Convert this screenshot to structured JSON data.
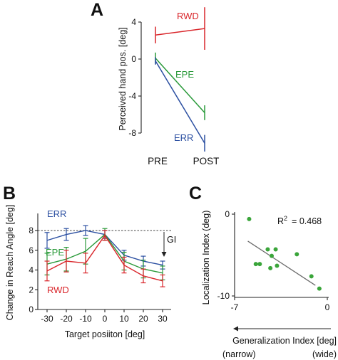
{
  "colors": {
    "rwd": "#d9262b",
    "epe": "#2a9a3a",
    "err": "#2b4fa1",
    "scatter": "#3aa53a",
    "fit": "#6a6a6a",
    "axis": "#222222"
  },
  "chart_data": [
    {
      "panel": "A",
      "type": "line",
      "ylabel": "Perceived hand pos. [deg]",
      "categories": [
        "PRE",
        "POST"
      ],
      "yticks": [
        "4",
        "0",
        "-4",
        "-8"
      ],
      "ylim": [
        -10,
        6
      ],
      "series": [
        {
          "name": "RWD",
          "values": [
            2.6,
            3.3
          ],
          "err": [
            0.9,
            2.3
          ]
        },
        {
          "name": "EPE",
          "values": [
            0.1,
            -5.8
          ],
          "err": [
            0.6,
            0.8
          ]
        },
        {
          "name": "ERR",
          "values": [
            -0.2,
            -9.1
          ],
          "err": [
            0.4,
            0.9
          ]
        }
      ]
    },
    {
      "panel": "B",
      "type": "line",
      "xlabel": "Target posiiton [deg]",
      "ylabel": "Change in Reach Angle [deg]",
      "x": [
        -30,
        -20,
        -10,
        0,
        10,
        20,
        30
      ],
      "xticks": [
        "-30",
        "-20",
        "-10",
        "0",
        "10",
        "20",
        "30"
      ],
      "yticks": [
        "8",
        "6",
        "4",
        "2",
        "0"
      ],
      "ylim": [
        0,
        9
      ],
      "reference_line": 8,
      "annotation": "GI",
      "series": [
        {
          "name": "ERR",
          "values": [
            7.0,
            7.6,
            8.0,
            7.6,
            5.5,
            4.9,
            4.5
          ],
          "err": [
            0.8,
            0.6,
            0.5,
            0.4,
            0.5,
            0.5,
            0.4
          ]
        },
        {
          "name": "EPE",
          "values": [
            4.6,
            5.1,
            5.9,
            7.6,
            4.9,
            4.1,
            3.7
          ],
          "err": [
            1.1,
            1.2,
            1.3,
            0.6,
            0.9,
            0.9,
            0.7
          ]
        },
        {
          "name": "RWD",
          "values": [
            3.9,
            4.9,
            4.7,
            7.5,
            4.5,
            3.4,
            2.9
          ],
          "err": [
            1.0,
            1.1,
            1.0,
            0.5,
            0.8,
            0.7,
            0.6
          ]
        }
      ]
    },
    {
      "panel": "C",
      "type": "scatter",
      "xlabel": "Generalization Index  [deg]",
      "ylabel": "Localization Index  (deg)",
      "xticks": [
        "-7",
        "0"
      ],
      "yticks": [
        "0",
        "-10"
      ],
      "xlim": [
        -7,
        0
      ],
      "ylim": [
        -10,
        0
      ],
      "x_notes": {
        "left": "(narrow)",
        "right": "(wide)"
      },
      "annotation": {
        "r2_label": "R",
        "r2_sup": "2",
        "r2_value": "= 0.468"
      },
      "points": [
        {
          "x": -5.9,
          "y": -0.6
        },
        {
          "x": -5.4,
          "y": -6.1
        },
        {
          "x": -5.1,
          "y": -6.1
        },
        {
          "x": -4.5,
          "y": -4.3
        },
        {
          "x": -4.2,
          "y": -5.1
        },
        {
          "x": -3.9,
          "y": -4.3
        },
        {
          "x": -4.3,
          "y": -6.6
        },
        {
          "x": -3.8,
          "y": -6.3
        },
        {
          "x": -2.3,
          "y": -4.9
        },
        {
          "x": -1.2,
          "y": -7.6
        },
        {
          "x": -0.6,
          "y": -9.1
        }
      ],
      "fit": {
        "x": [
          -6.0,
          -0.9
        ],
        "y": [
          -3.3,
          -8.7
        ]
      }
    }
  ]
}
